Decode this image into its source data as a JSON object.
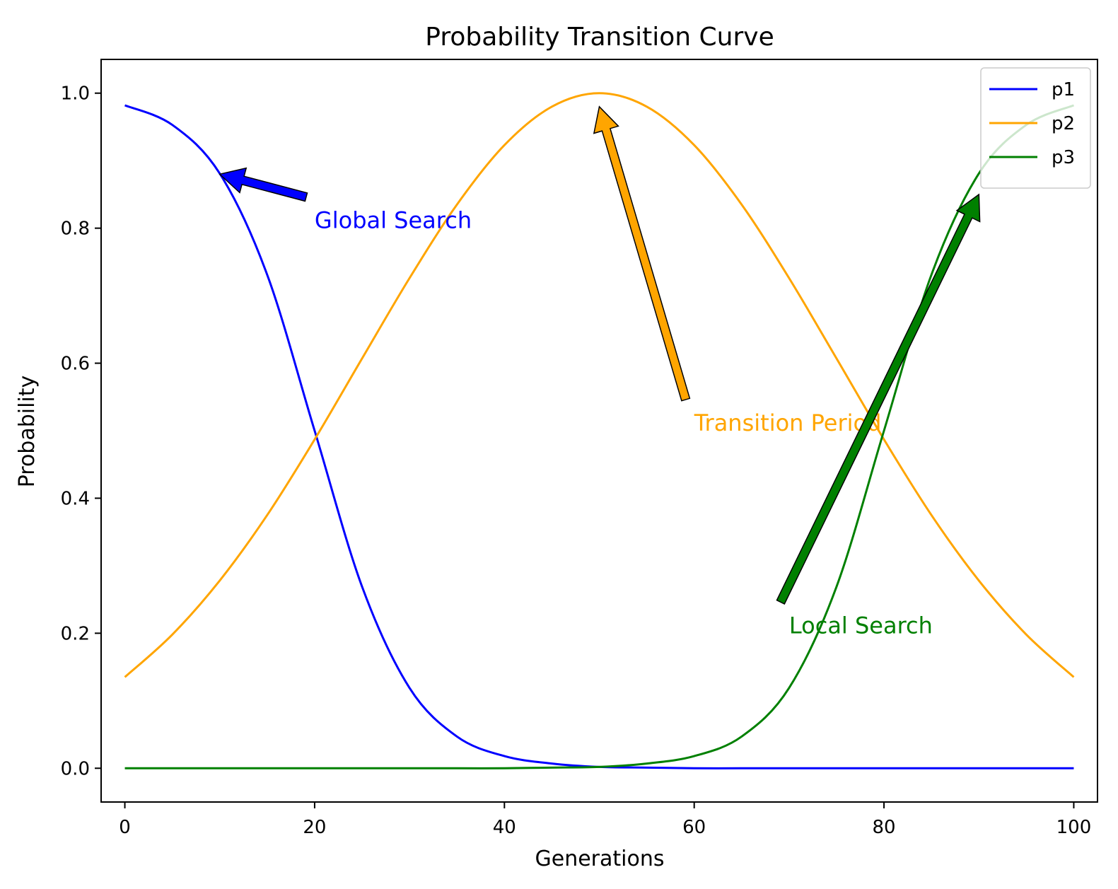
{
  "chart_data": {
    "type": "line",
    "title": "Probability Transition Curve",
    "xlabel": "Generations",
    "ylabel": "Probability",
    "xlim": [
      -2.5,
      102.5
    ],
    "ylim": [
      -0.05,
      1.05
    ],
    "xticks": [
      0,
      20,
      40,
      60,
      80,
      100
    ],
    "yticks": [
      0.0,
      0.2,
      0.4,
      0.6,
      0.8,
      1.0
    ],
    "xtick_labels": [
      "0",
      "20",
      "40",
      "60",
      "80",
      "100"
    ],
    "ytick_labels": [
      "0.0",
      "0.2",
      "0.4",
      "0.6",
      "0.8",
      "1.0"
    ],
    "grid": false,
    "legend_position": "top-right",
    "x": [
      0,
      5,
      10,
      15,
      20,
      25,
      30,
      35,
      40,
      45,
      50,
      55,
      60,
      65,
      70,
      75,
      80,
      85,
      90,
      95,
      100
    ],
    "series": [
      {
        "name": "p1",
        "color": "#0000ff",
        "values": [
          0.982,
          0.953,
          0.881,
          0.731,
          0.5,
          0.269,
          0.119,
          0.047,
          0.018,
          0.007,
          0.002,
          0.001,
          0.0,
          0.0,
          0.0,
          0.0,
          0.0,
          0.0,
          0.0,
          0.0,
          0.0
        ]
      },
      {
        "name": "p2",
        "color": "#ffa500",
        "values": [
          0.135,
          0.198,
          0.278,
          0.375,
          0.487,
          0.607,
          0.726,
          0.835,
          0.923,
          0.98,
          1.0,
          0.98,
          0.923,
          0.835,
          0.726,
          0.607,
          0.487,
          0.375,
          0.278,
          0.198,
          0.135
        ]
      },
      {
        "name": "p3",
        "color": "#008000",
        "values": [
          0.0,
          0.0,
          0.0,
          0.0,
          0.0,
          0.0,
          0.0,
          0.0,
          0.0,
          0.001,
          0.002,
          0.007,
          0.018,
          0.047,
          0.119,
          0.269,
          0.5,
          0.731,
          0.881,
          0.953,
          0.982
        ]
      }
    ],
    "annotations": [
      {
        "text": "Global Search",
        "color": "#0000ff",
        "text_x": 20,
        "text_y": 0.8,
        "arrow_to_x": 10,
        "arrow_to_y": 0.88
      },
      {
        "text": "Transition Period",
        "color": "#ffa500",
        "text_x": 60,
        "text_y": 0.5,
        "arrow_to_x": 50,
        "arrow_to_y": 0.98
      },
      {
        "text": "Local Search",
        "color": "#008000",
        "text_x": 70,
        "text_y": 0.2,
        "arrow_to_x": 90,
        "arrow_to_y": 0.85
      }
    ]
  }
}
